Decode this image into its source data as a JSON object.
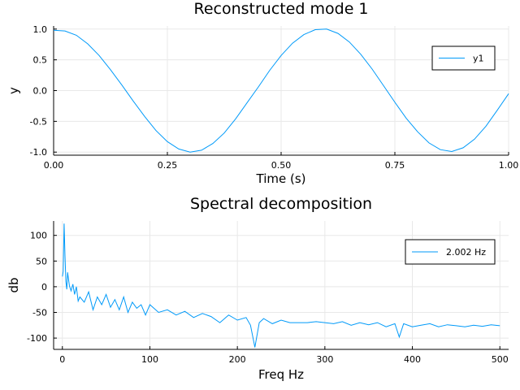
{
  "line_color": "#009af9",
  "chart_data": [
    {
      "type": "line",
      "title": "Reconstructed mode 1",
      "xlabel": "Time (s)",
      "ylabel": "y",
      "xlim": [
        0,
        1
      ],
      "ylim": [
        -1.05,
        1.05
      ],
      "xticks": [
        0,
        0.25,
        0.5,
        0.75,
        1.0
      ],
      "xtick_labels": [
        "0.00",
        "0.25",
        "0.50",
        "0.75",
        "1.00"
      ],
      "yticks": [
        -1.0,
        -0.5,
        0.0,
        0.5,
        1.0
      ],
      "ytick_labels": [
        "-1.0",
        "-0.5",
        "0.0",
        "0.5",
        "1.0"
      ],
      "grid": true,
      "legend_position": "top-right",
      "series": [
        {
          "name": "y1",
          "x": [
            0,
            0.025,
            0.05,
            0.075,
            0.1,
            0.125,
            0.15,
            0.175,
            0.2,
            0.225,
            0.25,
            0.275,
            0.3,
            0.325,
            0.35,
            0.375,
            0.4,
            0.425,
            0.45,
            0.475,
            0.5,
            0.525,
            0.55,
            0.575,
            0.6,
            0.625,
            0.65,
            0.675,
            0.7,
            0.725,
            0.75,
            0.775,
            0.8,
            0.825,
            0.85,
            0.875,
            0.9,
            0.925,
            0.95,
            0.975,
            1.0
          ],
          "y": [
            0.98,
            0.97,
            0.9,
            0.76,
            0.57,
            0.34,
            0.09,
            -0.17,
            -0.42,
            -0.65,
            -0.83,
            -0.95,
            -1.0,
            -0.97,
            -0.86,
            -0.69,
            -0.46,
            -0.2,
            0.06,
            0.33,
            0.57,
            0.77,
            0.91,
            0.99,
            1.0,
            0.93,
            0.79,
            0.59,
            0.35,
            0.08,
            -0.19,
            -0.45,
            -0.67,
            -0.85,
            -0.96,
            -0.99,
            -0.93,
            -0.79,
            -0.58,
            -0.32,
            -0.05
          ]
        }
      ]
    },
    {
      "type": "line",
      "title": "Spectral decomposition",
      "xlabel": "Freq Hz",
      "ylabel": "db",
      "xlim": [
        -10,
        510
      ],
      "ylim": [
        -122,
        128
      ],
      "xticks": [
        0,
        100,
        200,
        300,
        400,
        500
      ],
      "xtick_labels": [
        "0",
        "100",
        "200",
        "300",
        "400",
        "500"
      ],
      "yticks": [
        -100,
        -50,
        0,
        50,
        100
      ],
      "ytick_labels": [
        "-100",
        "-50",
        "0",
        "50",
        "100"
      ],
      "grid": true,
      "legend_position": "top-right",
      "series": [
        {
          "name": "2.002 Hz",
          "x": [
            0,
            1,
            2,
            3,
            4,
            5,
            6,
            8,
            10,
            12,
            14,
            16,
            18,
            20,
            25,
            30,
            35,
            40,
            45,
            50,
            55,
            60,
            65,
            70,
            75,
            80,
            85,
            90,
            95,
            100,
            110,
            120,
            130,
            140,
            150,
            160,
            170,
            180,
            190,
            200,
            210,
            215,
            220,
            225,
            230,
            240,
            250,
            260,
            270,
            280,
            290,
            300,
            310,
            320,
            330,
            340,
            350,
            360,
            370,
            380,
            385,
            390,
            400,
            410,
            420,
            430,
            440,
            450,
            460,
            470,
            480,
            490,
            500
          ],
          "y": [
            20,
            30,
            123,
            60,
            10,
            -5,
            28,
            2,
            -8,
            5,
            -15,
            0,
            -28,
            -20,
            -30,
            -10,
            -45,
            -20,
            -35,
            -15,
            -40,
            -25,
            -45,
            -20,
            -50,
            -30,
            -42,
            -35,
            -55,
            -35,
            -50,
            -45,
            -55,
            -48,
            -60,
            -52,
            -58,
            -70,
            -55,
            -65,
            -60,
            -75,
            -118,
            -70,
            -62,
            -72,
            -65,
            -70,
            -70,
            -70,
            -68,
            -70,
            -72,
            -68,
            -75,
            -70,
            -74,
            -70,
            -78,
            -72,
            -98,
            -72,
            -78,
            -75,
            -72,
            -78,
            -74,
            -76,
            -78,
            -75,
            -77,
            -74,
            -76
          ]
        }
      ]
    }
  ]
}
